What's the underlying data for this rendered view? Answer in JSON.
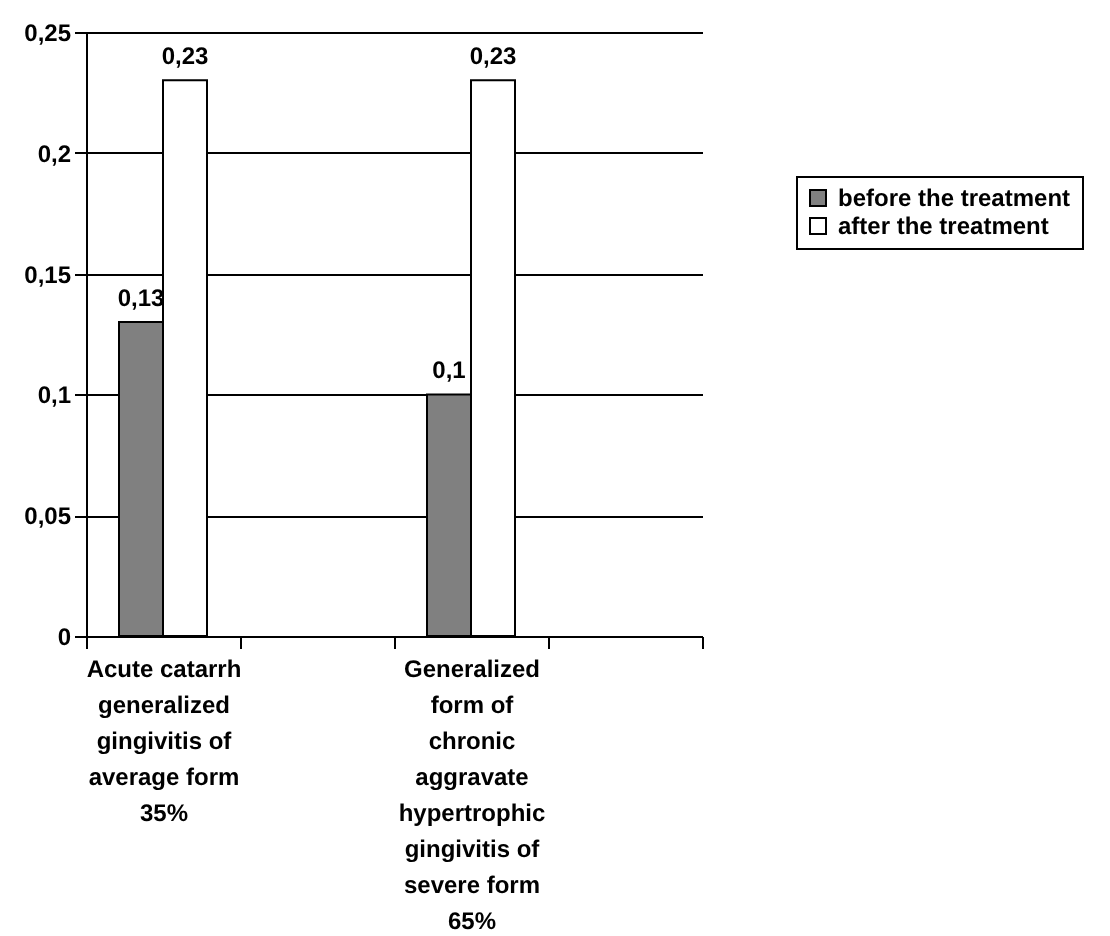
{
  "chart_data": {
    "type": "bar",
    "categories": [
      "Acute catarrh generalized gingivitis of average form 35%",
      null,
      "Generalized form of chronic aggravate hypertrophic gingivitis of severe form 65%",
      null
    ],
    "series": [
      {
        "name": "before the treatment",
        "color": "#808080",
        "values": [
          0.13,
          null,
          0.1,
          null
        ],
        "value_labels": [
          "0,13",
          null,
          "0,1",
          null
        ]
      },
      {
        "name": "after the treatment",
        "color": "#ffffff",
        "values": [
          0.23,
          null,
          0.23,
          null
        ],
        "value_labels": [
          "0,23",
          null,
          "0,23",
          null
        ]
      }
    ],
    "ylim": [
      0,
      0.25
    ],
    "yticks": [
      0,
      {
        "value": 0.05,
        "label": "0,05"
      },
      {
        "value": 0.1,
        "label": "0,1"
      },
      {
        "value": 0.15,
        "label": "0,15"
      },
      {
        "value": 0.2,
        "label": "0,2"
      },
      {
        "value": 0.25,
        "label": "0,25"
      }
    ],
    "grid": "y",
    "legend": "right"
  }
}
